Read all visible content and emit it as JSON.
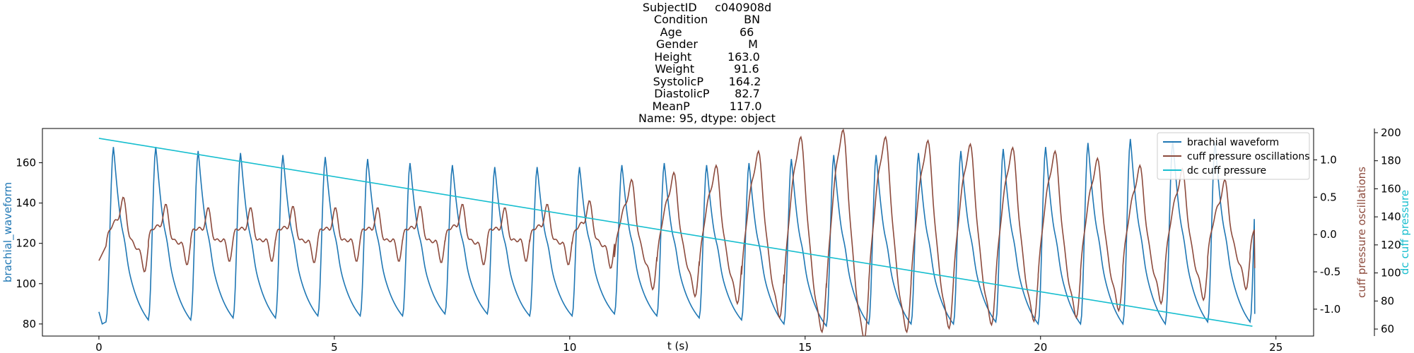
{
  "chart_data": {
    "type": "line",
    "title_lines": [
      "SubjectID     c040908d",
      "Condition          BN",
      "Age                66",
      "Gender              M",
      "Height          163.0",
      "Weight           91.6",
      "SystolicP       164.2",
      "DiastolicP       82.7",
      "MeanP           117.0",
      "Name: 95, dtype: object"
    ],
    "xlabel": "t (s)",
    "xlim": [
      -1.2,
      25.8
    ],
    "xticks": [
      0,
      5,
      10,
      15,
      20,
      25
    ],
    "y_left": {
      "label": "brachial_waveform",
      "color": "#1f77b4",
      "lim": [
        74,
        177
      ],
      "ticks": [
        80,
        100,
        120,
        140,
        160
      ]
    },
    "y_right1": {
      "label": "cuff pressure oscillations",
      "color": "#8c4a3c",
      "lim": [
        -1.36,
        1.42
      ],
      "ticks": [
        -1.0,
        -0.5,
        0.0,
        0.5,
        1.0
      ]
    },
    "y_right2": {
      "label": "dc cuff pressure",
      "color": "#17becf",
      "lim": [
        55,
        203
      ],
      "ticks": [
        60,
        80,
        100,
        120,
        140,
        160,
        180,
        200
      ]
    },
    "legend": {
      "placement": "top-right",
      "entries": [
        "brachial waveform",
        "cuff pressure oscillations",
        "dc cuff pressure"
      ]
    },
    "series": [
      {
        "name": "brachial waveform",
        "axis": "left",
        "color": "#1f77b4",
        "beats": {
          "t_start": 0.15,
          "period": 0.9,
          "end": 24.55,
          "peaks": [
            168,
            168,
            166,
            165,
            164,
            163,
            162,
            160,
            159,
            158,
            158,
            158,
            159,
            160,
            159,
            160,
            162,
            164,
            164,
            165,
            166,
            167,
            168,
            170,
            172,
            171,
            170,
            168,
            168,
            167,
            166
          ],
          "troughs": [
            81,
            82,
            82,
            83,
            83,
            84,
            84,
            84,
            85,
            85,
            84,
            84,
            85,
            84,
            83,
            82,
            80,
            79,
            80,
            80,
            80,
            81,
            80,
            80,
            80,
            80,
            81,
            81,
            80,
            82,
            84
          ]
        },
        "start_value": 86,
        "end_value": 85
      },
      {
        "name": "cuff pressure oscillations",
        "axis": "right1",
        "color": "#8c4a3c",
        "beats": {
          "t_start": 0.15,
          "period": 0.9,
          "end": 24.55,
          "amplitudes": [
            0.35,
            0.25,
            0.2,
            0.2,
            0.22,
            0.2,
            0.2,
            0.22,
            0.25,
            0.2,
            0.25,
            0.3,
            0.6,
            0.7,
            0.8,
            1.0,
            1.2,
            1.3,
            1.2,
            1.15,
            1.1,
            1.05,
            1.0,
            0.9,
            0.8,
            0.75,
            0.6,
            0.5,
            0.4,
            0.3,
            0.25
          ]
        },
        "start_value": -0.35,
        "end_value": -0.45
      },
      {
        "name": "dc cuff pressure",
        "axis": "right2",
        "color": "#17becf",
        "x": [
          0,
          24.5
        ],
        "y": [
          196,
          62
        ]
      }
    ]
  }
}
